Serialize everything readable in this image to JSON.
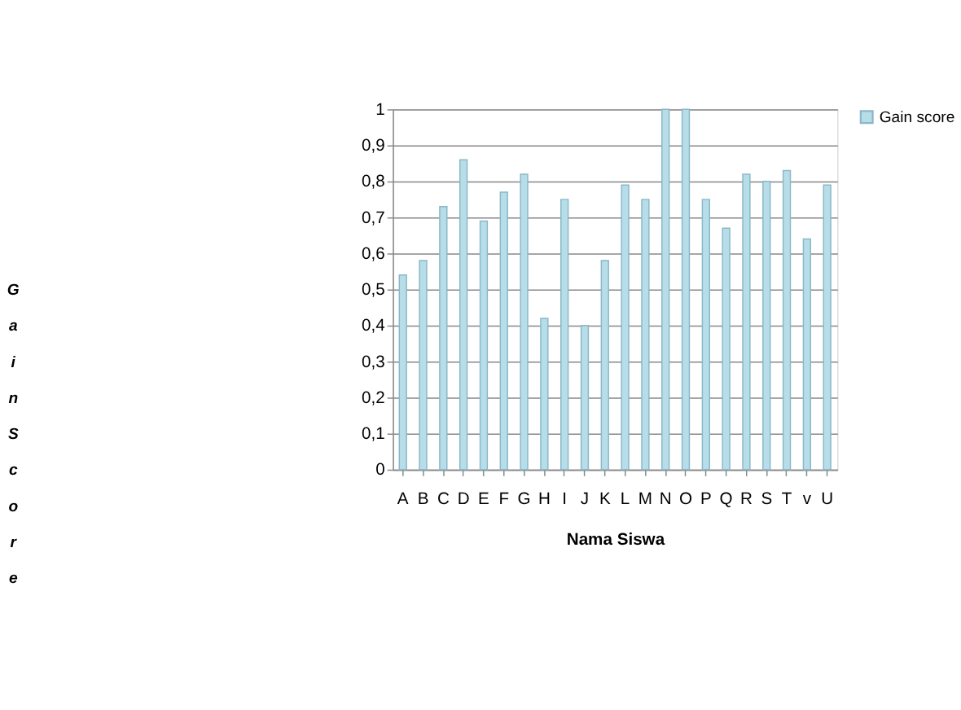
{
  "chart_data": {
    "type": "bar",
    "xlabel": "Nama Siswa",
    "ylabel": "Gain Score",
    "categories": [
      "A",
      "B",
      "C",
      "D",
      "E",
      "F",
      "G",
      "H",
      "I",
      "J",
      "K",
      "L",
      "M",
      "N",
      "O",
      "P",
      "Q",
      "R",
      "S",
      "T",
      "v",
      "U"
    ],
    "series": [
      {
        "name": "Gain score",
        "color": "#b7dde8",
        "values": [
          0.54,
          0.58,
          0.73,
          0.86,
          0.69,
          0.77,
          0.82,
          0.42,
          0.75,
          0.4,
          0.58,
          0.79,
          0.75,
          1.0,
          1.0,
          0.75,
          0.67,
          0.82,
          0.8,
          0.83,
          0.64,
          0.79
        ]
      }
    ],
    "ylim": [
      0,
      1
    ],
    "yticks": [
      0,
      {
        "value": 0.1,
        "label": "0,1"
      },
      {
        "value": 0.2,
        "label": "0,2"
      },
      {
        "value": 0.3,
        "label": "0,3"
      },
      {
        "value": 0.4,
        "label": "0,4"
      },
      {
        "value": 0.5,
        "label": "0,5"
      },
      {
        "value": 0.6,
        "label": "0,6"
      },
      {
        "value": 0.7,
        "label": "0,7"
      },
      {
        "value": 0.8,
        "label": "0,8"
      },
      {
        "value": 0.9,
        "label": "0,9"
      },
      1
    ],
    "grid": "y",
    "legend": "right"
  }
}
